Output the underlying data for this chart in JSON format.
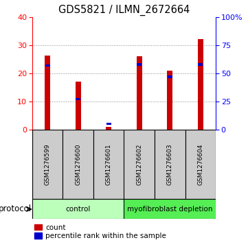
{
  "title": "GDS5821 / ILMN_2672664",
  "samples": [
    "GSM1276599",
    "GSM1276600",
    "GSM1276601",
    "GSM1276602",
    "GSM1276603",
    "GSM1276604"
  ],
  "counts": [
    26.5,
    17.0,
    1.0,
    26.2,
    21.0,
    32.3
  ],
  "percentiles": [
    57,
    27,
    5,
    58,
    47,
    58
  ],
  "left_ylim": [
    0,
    40
  ],
  "right_ylim": [
    0,
    100
  ],
  "left_yticks": [
    0,
    10,
    20,
    30,
    40
  ],
  "right_yticks": [
    0,
    25,
    50,
    75,
    100
  ],
  "right_yticklabels": [
    "0",
    "25",
    "50",
    "75",
    "100%"
  ],
  "bar_color_red": "#cc0000",
  "bar_color_blue": "#0000cc",
  "protocol_groups": [
    {
      "label": "control",
      "start": 0,
      "end": 2,
      "color": "#bbffbb"
    },
    {
      "label": "myofibroblast depletion",
      "start": 3,
      "end": 5,
      "color": "#55ee55"
    }
  ],
  "legend_count_label": "count",
  "legend_pct_label": "percentile rank within the sample",
  "protocol_label": "protocol",
  "bar_width": 0.18,
  "grid_color": "#888888",
  "bg_color": "#ffffff",
  "sample_box_color": "#cccccc",
  "title_fontsize": 10.5,
  "tick_fontsize": 8,
  "label_fontsize": 7.5
}
